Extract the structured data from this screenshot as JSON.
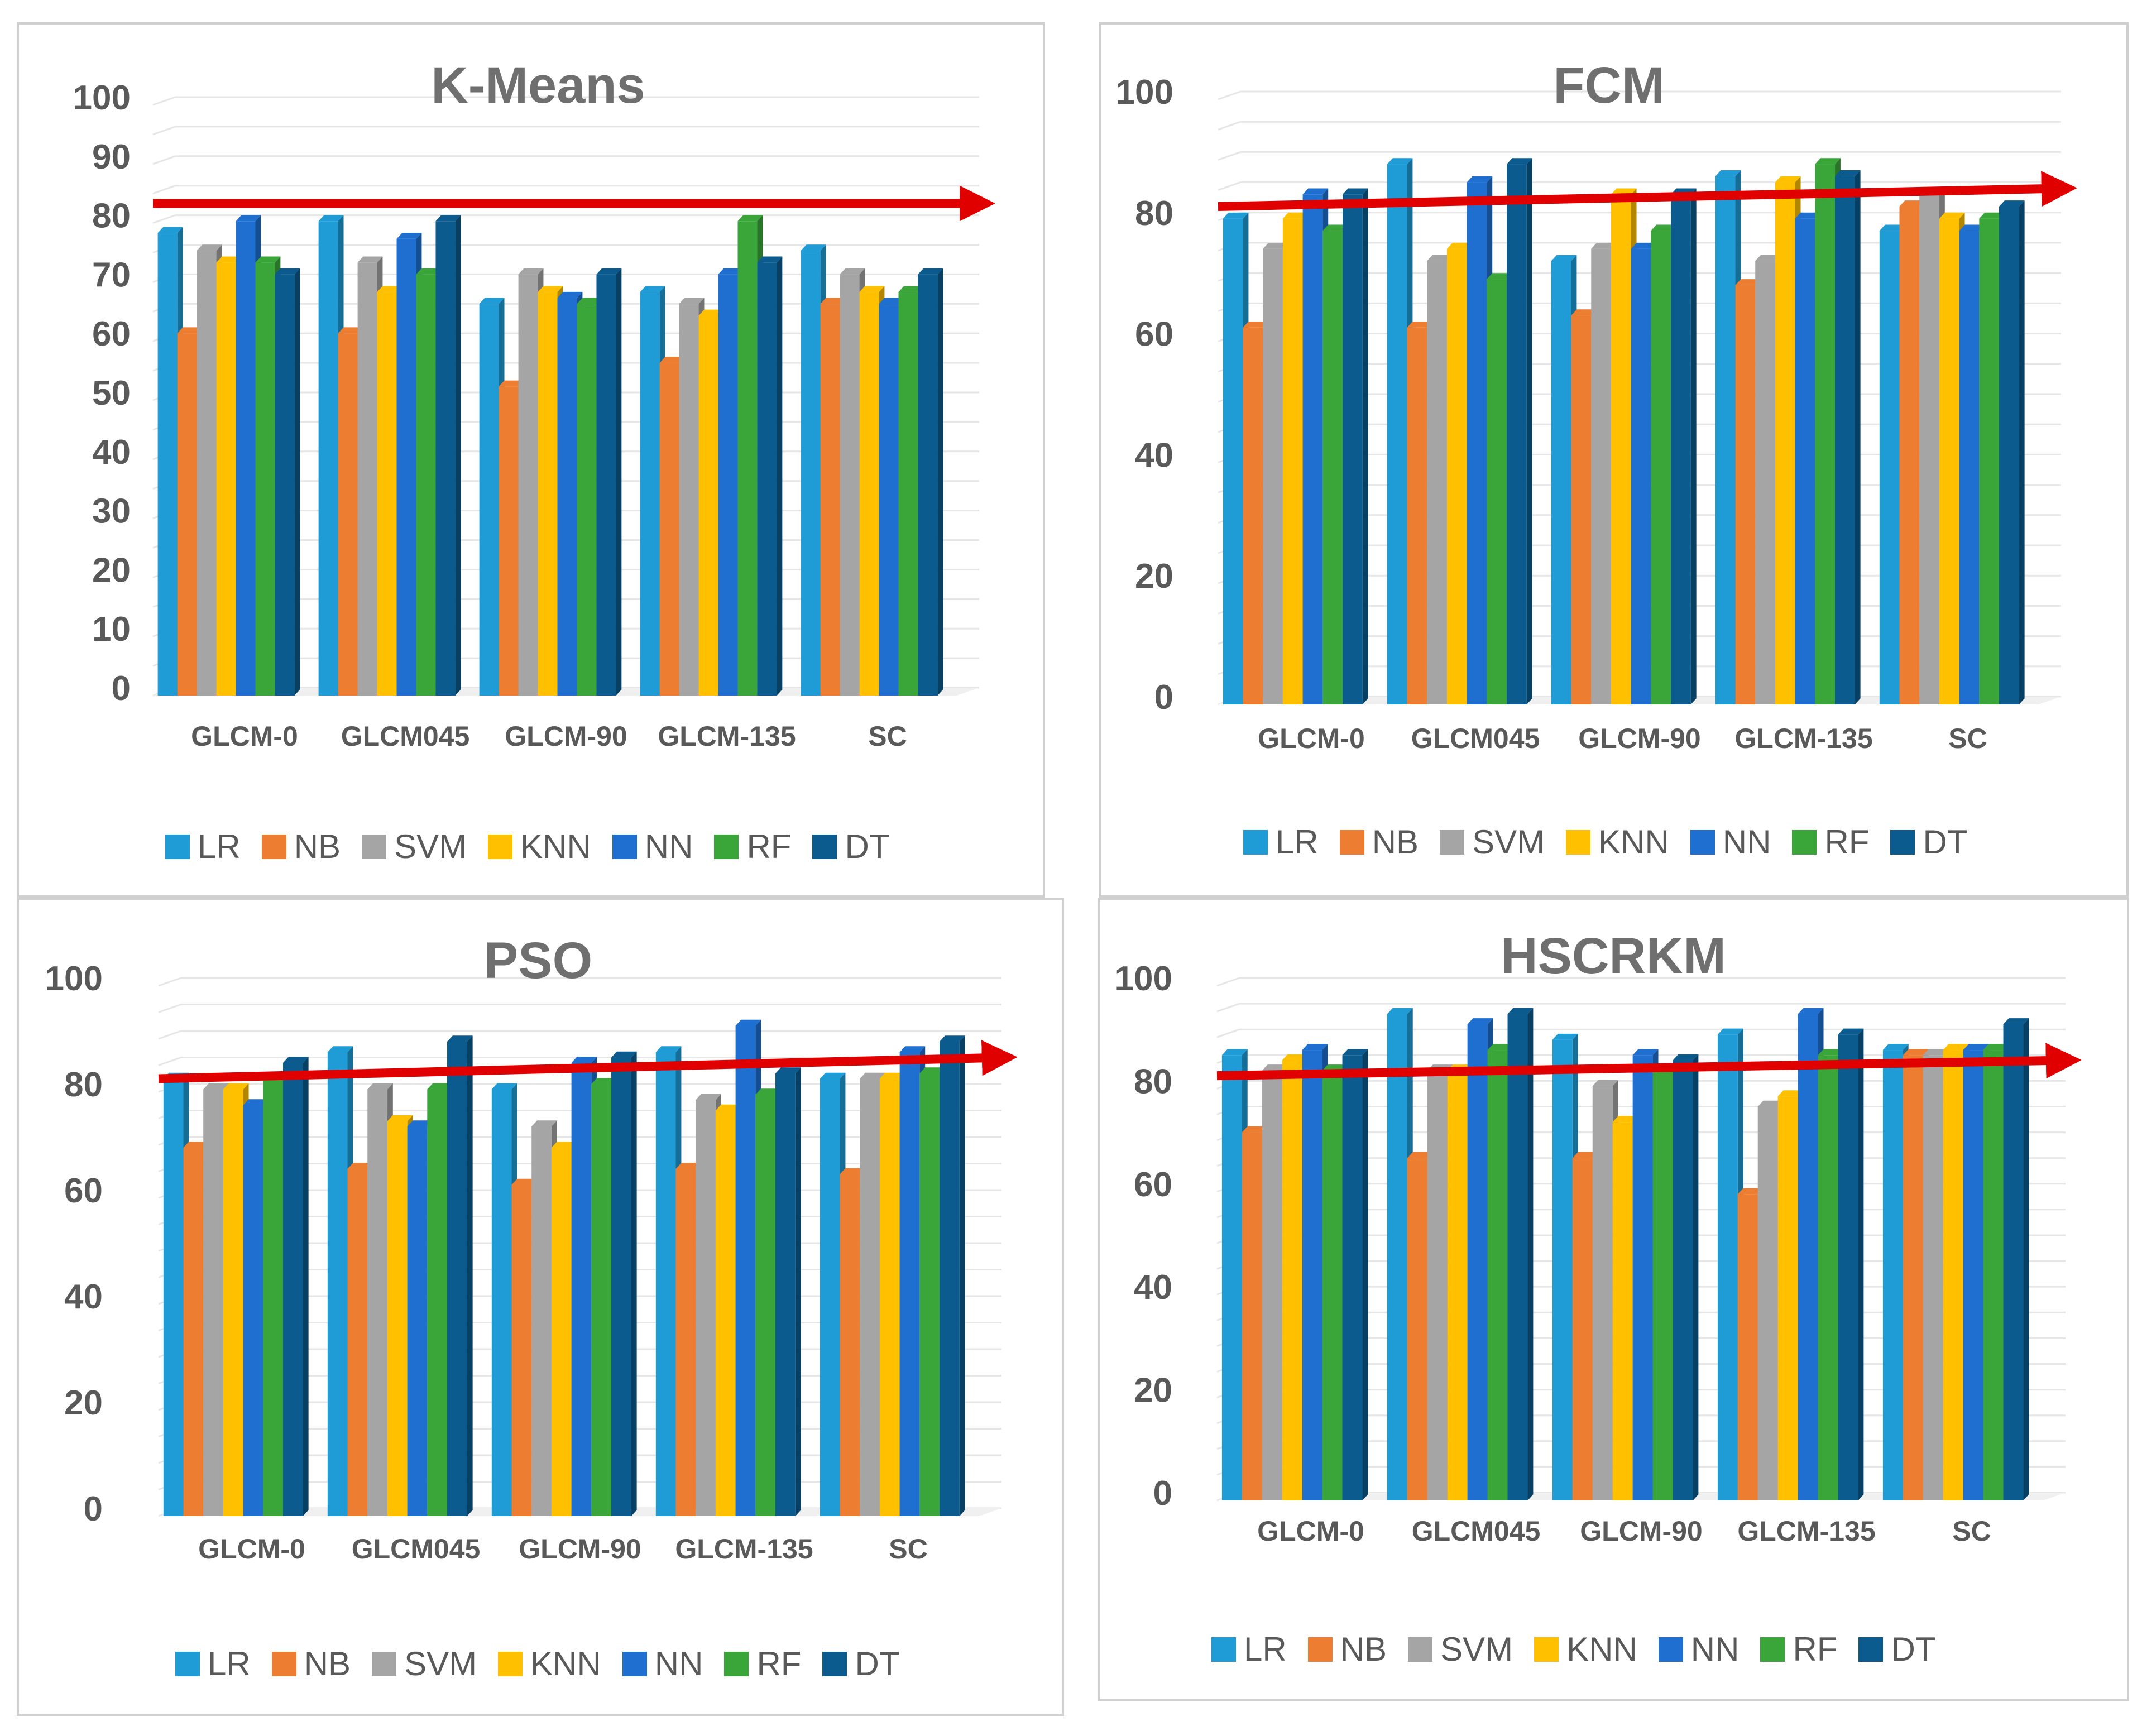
{
  "legend": [
    {
      "key": "LR",
      "label": "LR",
      "color": "#1f9bd6"
    },
    {
      "key": "NB",
      "label": "NB",
      "color": "#ed7d31"
    },
    {
      "key": "SVM",
      "label": "SVM",
      "color": "#a5a5a5"
    },
    {
      "key": "KNN",
      "label": "KNN",
      "color": "#ffc000"
    },
    {
      "key": "NN",
      "label": "NN",
      "color": "#1f6fd0"
    },
    {
      "key": "RF",
      "label": "RF",
      "color": "#3aa63a"
    },
    {
      "key": "DT",
      "label": "DT",
      "color": "#0b5b8f"
    }
  ],
  "arrow_color": "#e00000",
  "chart_data": [
    {
      "type": "bar",
      "title": "K-Means",
      "categories": [
        "GLCM-0",
        "GLCM045",
        "GLCM-90",
        "GLCM-135",
        "SC"
      ],
      "ylim": [
        0,
        100
      ],
      "yticks": [
        "0",
        "10",
        "20",
        "30",
        "40",
        "50",
        "60",
        "70",
        "80",
        "90",
        "100"
      ],
      "trend_arrow": [
        82,
        82
      ],
      "series": [
        {
          "name": "LR",
          "values": [
            77,
            79,
            65,
            67,
            74
          ]
        },
        {
          "name": "NB",
          "values": [
            60,
            60,
            51,
            55,
            65
          ]
        },
        {
          "name": "SVM",
          "values": [
            74,
            72,
            70,
            65,
            70
          ]
        },
        {
          "name": "KNN",
          "values": [
            72,
            67,
            67,
            63,
            67
          ]
        },
        {
          "name": "NN",
          "values": [
            79,
            76,
            66,
            70,
            65
          ]
        },
        {
          "name": "RF",
          "values": [
            72,
            70,
            65,
            79,
            67
          ]
        },
        {
          "name": "DT",
          "values": [
            70,
            79,
            70,
            72,
            70
          ]
        }
      ]
    },
    {
      "type": "bar",
      "title": "FCM",
      "categories": [
        "GLCM-0",
        "GLCM045",
        "GLCM-90",
        "GLCM-135",
        "SC"
      ],
      "ylim": [
        0,
        100
      ],
      "yticks": [
        "0",
        "20",
        "40",
        "60",
        "80",
        "100"
      ],
      "trend_arrow": [
        81,
        84
      ],
      "series": [
        {
          "name": "LR",
          "values": [
            79,
            88,
            72,
            86,
            77
          ]
        },
        {
          "name": "NB",
          "values": [
            61,
            61,
            63,
            68,
            81
          ]
        },
        {
          "name": "SVM",
          "values": [
            74,
            72,
            74,
            72,
            83
          ]
        },
        {
          "name": "KNN",
          "values": [
            79,
            74,
            83,
            85,
            79
          ]
        },
        {
          "name": "NN",
          "values": [
            83,
            85,
            74,
            79,
            77
          ]
        },
        {
          "name": "RF",
          "values": [
            77,
            69,
            77,
            88,
            79
          ]
        },
        {
          "name": "DT",
          "values": [
            83,
            88,
            83,
            86,
            81
          ]
        }
      ]
    },
    {
      "type": "bar",
      "title": "PSO",
      "categories": [
        "GLCM-0",
        "GLCM045",
        "GLCM-90",
        "GLCM-135",
        "SC"
      ],
      "ylim": [
        0,
        100
      ],
      "yticks": [
        "0",
        "20",
        "40",
        "60",
        "80",
        "100"
      ],
      "trend_arrow": [
        81,
        85
      ],
      "series": [
        {
          "name": "LR",
          "values": [
            81,
            86,
            79,
            86,
            81
          ]
        },
        {
          "name": "NB",
          "values": [
            68,
            64,
            61,
            64,
            63
          ]
        },
        {
          "name": "SVM",
          "values": [
            79,
            79,
            72,
            77,
            81
          ]
        },
        {
          "name": "KNN",
          "values": [
            79,
            73,
            68,
            75,
            81
          ]
        },
        {
          "name": "NN",
          "values": [
            76,
            72,
            84,
            91,
            86
          ]
        },
        {
          "name": "RF",
          "values": [
            81,
            79,
            80,
            78,
            82
          ]
        },
        {
          "name": "DT",
          "values": [
            84,
            88,
            85,
            82,
            88
          ]
        }
      ]
    },
    {
      "type": "bar",
      "title": "HSCRKM",
      "categories": [
        "GLCM-0",
        "GLCM045",
        "GLCM-90",
        "GLCM-135",
        "SC"
      ],
      "ylim": [
        0,
        100
      ],
      "yticks": [
        "0",
        "20",
        "40",
        "60",
        "80",
        "100"
      ],
      "trend_arrow": [
        81,
        84
      ],
      "series": [
        {
          "name": "LR",
          "values": [
            85,
            93,
            88,
            89,
            86
          ]
        },
        {
          "name": "NB",
          "values": [
            70,
            65,
            65,
            58,
            85
          ]
        },
        {
          "name": "SVM",
          "values": [
            82,
            82,
            79,
            75,
            85
          ]
        },
        {
          "name": "KNN",
          "values": [
            84,
            82,
            72,
            77,
            86
          ]
        },
        {
          "name": "NN",
          "values": [
            86,
            91,
            85,
            93,
            86
          ]
        },
        {
          "name": "RF",
          "values": [
            82,
            86,
            82,
            85,
            86
          ]
        },
        {
          "name": "DT",
          "values": [
            85,
            93,
            84,
            89,
            91
          ]
        }
      ]
    }
  ]
}
